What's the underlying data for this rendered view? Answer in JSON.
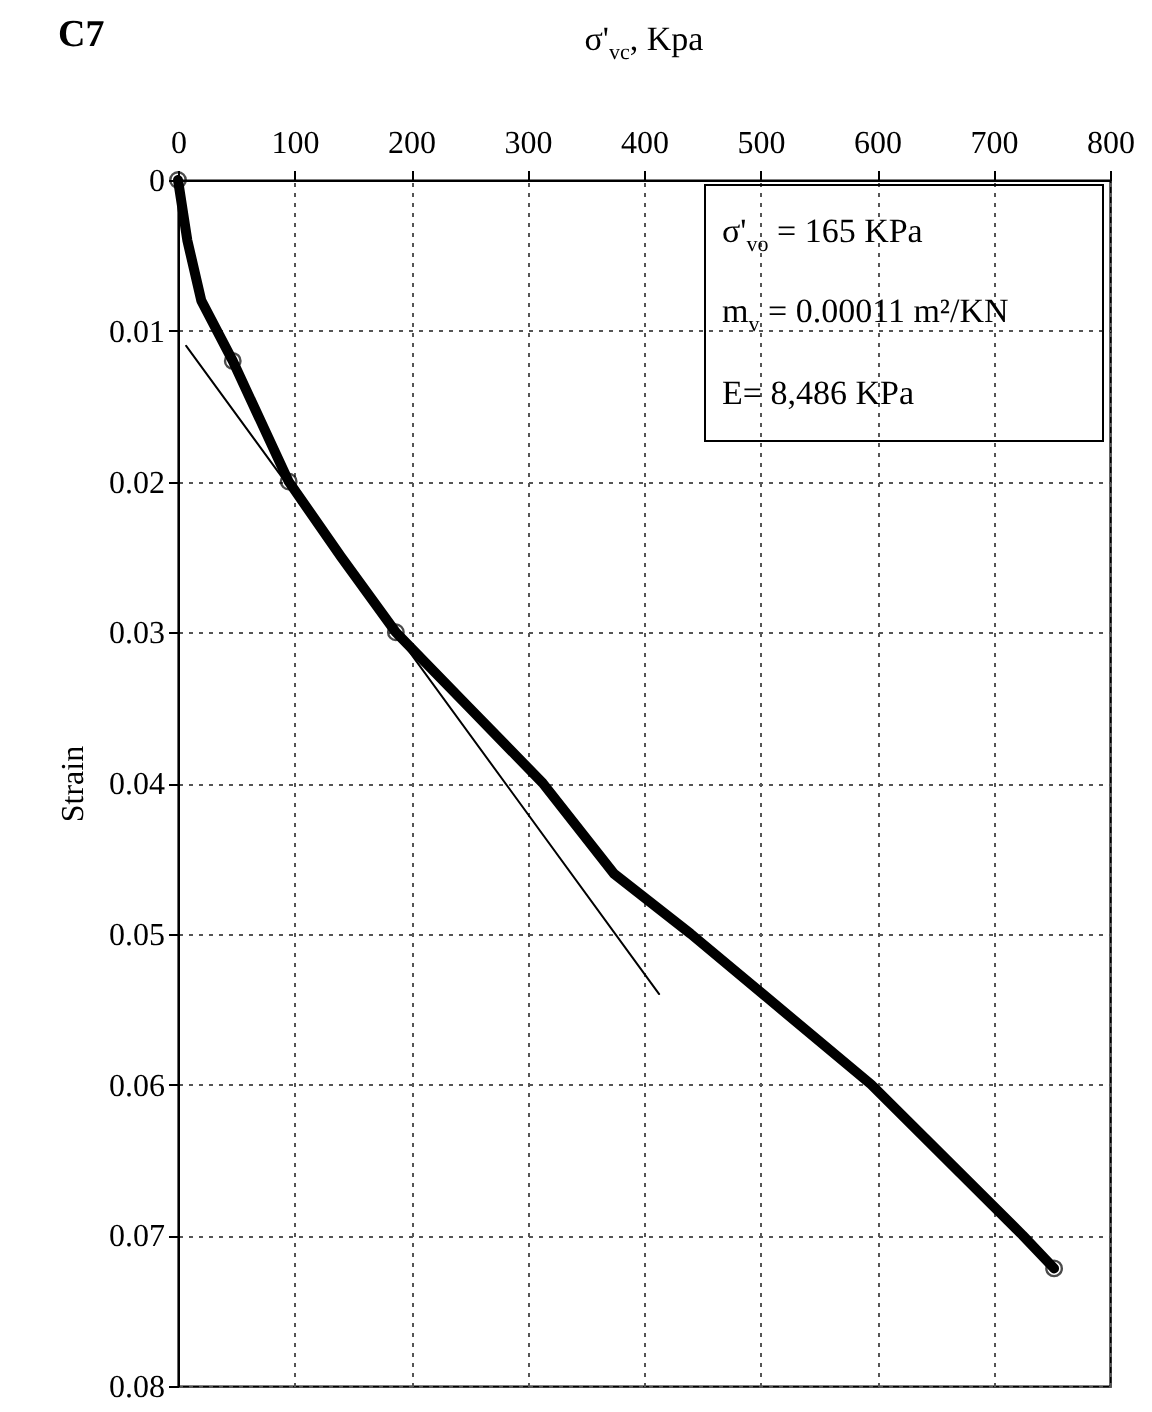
{
  "chart_data": {
    "type": "line",
    "title": "C7",
    "xlabel": "σ'$_{vc}$, Kpa",
    "ylabel": "Strain",
    "xlim": [
      0,
      800
    ],
    "xticks": [
      0,
      100,
      200,
      300,
      400,
      500,
      600,
      700,
      800
    ],
    "ylim": [
      0.08,
      0
    ],
    "yticks": [
      0,
      0.01,
      0.02,
      0.03,
      0.04,
      0.05,
      0.06,
      0.07,
      0.08
    ],
    "grid": true,
    "line_style": "solid",
    "annotations": [
      "σ'$_{vo}$ = 165 KPa",
      "m$_{v}$ = 0.00011 m²/KN",
      "E= 8,486 KPa"
    ],
    "series": [
      {
        "color": "#000000",
        "marker": "none",
        "x": [
          0,
          8,
          20,
          47,
          95,
          140,
          187,
          250,
          313,
          374,
          440,
          595,
          725,
          752
        ],
        "values": [
          0,
          0.004,
          0.008,
          0.012,
          0.02,
          0.025,
          0.03,
          0.035,
          0.04,
          0.046,
          0.05,
          0.06,
          0.07,
          0.0722
        ]
      },
      {
        "color": "#000000",
        "marker": "none",
        "x": [
          7,
          413
        ],
        "values": [
          0.011,
          0.054
        ]
      },
      {
        "type": "scatter",
        "color": "#000000",
        "marker": "circle",
        "x": [
          0,
          47,
          95,
          187,
          752
        ],
        "values": [
          0,
          0.012,
          0.02,
          0.03,
          0.0722
        ]
      }
    ]
  }
}
